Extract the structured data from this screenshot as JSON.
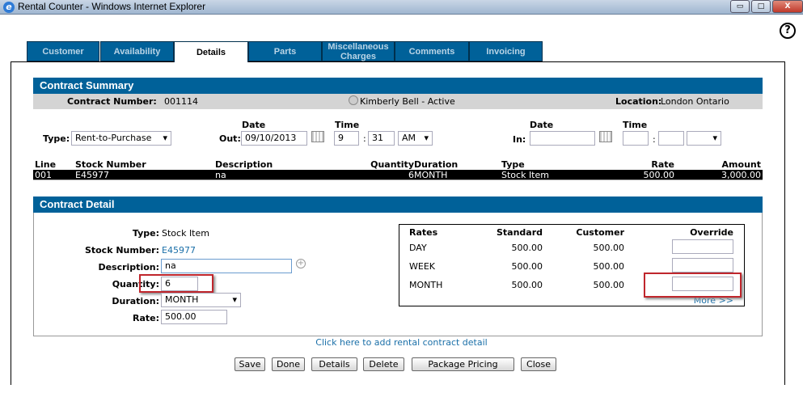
{
  "window": {
    "title": "Rental Counter - Windows Internet Explorer",
    "minimize": "▭",
    "maximize": "□",
    "close": "X"
  },
  "help": "?",
  "tabs": [
    {
      "label": "Customer"
    },
    {
      "label": "Availability"
    },
    {
      "label": "Details",
      "active": true
    },
    {
      "label": "Parts"
    },
    {
      "label": "Miscellaneous Charges"
    },
    {
      "label": "Comments"
    },
    {
      "label": "Invoicing"
    }
  ],
  "summary": {
    "title": "Contract Summary",
    "contract_number_label": "Contract Number:",
    "contract_number": "001114",
    "customer": "Kimberly Bell - Active",
    "location_label": "Location:",
    "location": "London Ontario",
    "type_label": "Type:",
    "type_value": "Rent-to-Purchase",
    "date_label": "Date",
    "time_label": "Time",
    "out_label": "Out:",
    "out_date": "09/10/2013",
    "out_hour": "9",
    "out_minute": "31",
    "out_ampm": "AM",
    "in_label": "In:",
    "in_date": "",
    "in_hour": "",
    "in_minute": "",
    "in_ampm": "",
    "colon": ":",
    "columns": [
      "Line",
      "Stock Number",
      "Description",
      "Quantity",
      "Duration",
      "Type",
      "Rate",
      "Amount"
    ],
    "rows": [
      [
        "001",
        "E45977",
        "na",
        "6",
        "MONTH",
        "Stock Item",
        "500.00",
        "3,000.00"
      ]
    ]
  },
  "detail": {
    "title": "Contract Detail",
    "type_label": "Type:",
    "type_value": "Stock Item",
    "stock_label": "Stock Number:",
    "stock_value": "E45977",
    "desc_label": "Description:",
    "desc_value": "na",
    "qty_label": "Quantity:",
    "qty_value": "6",
    "duration_label": "Duration:",
    "duration_value": "MONTH",
    "rate_label": "Rate:",
    "rate_value": "500.00",
    "rates_columns": [
      "Rates",
      "Standard",
      "Customer",
      "Override"
    ],
    "rates": [
      {
        "period": "DAY",
        "standard": "500.00",
        "customer": "500.00",
        "override": ""
      },
      {
        "period": "WEEK",
        "standard": "500.00",
        "customer": "500.00",
        "override": ""
      },
      {
        "period": "MONTH",
        "standard": "500.00",
        "customer": "500.00",
        "override": ""
      }
    ],
    "more": "More >>",
    "highlight_color": "#c0262c"
  },
  "add_link": "Click here to add rental contract detail",
  "buttons": {
    "save": "Save",
    "done": "Done",
    "details": "Details",
    "delete": "Delete",
    "package": "Package Pricing",
    "close": "Close"
  },
  "colors": {
    "header": "#006199",
    "link": "#1a6fa8"
  }
}
